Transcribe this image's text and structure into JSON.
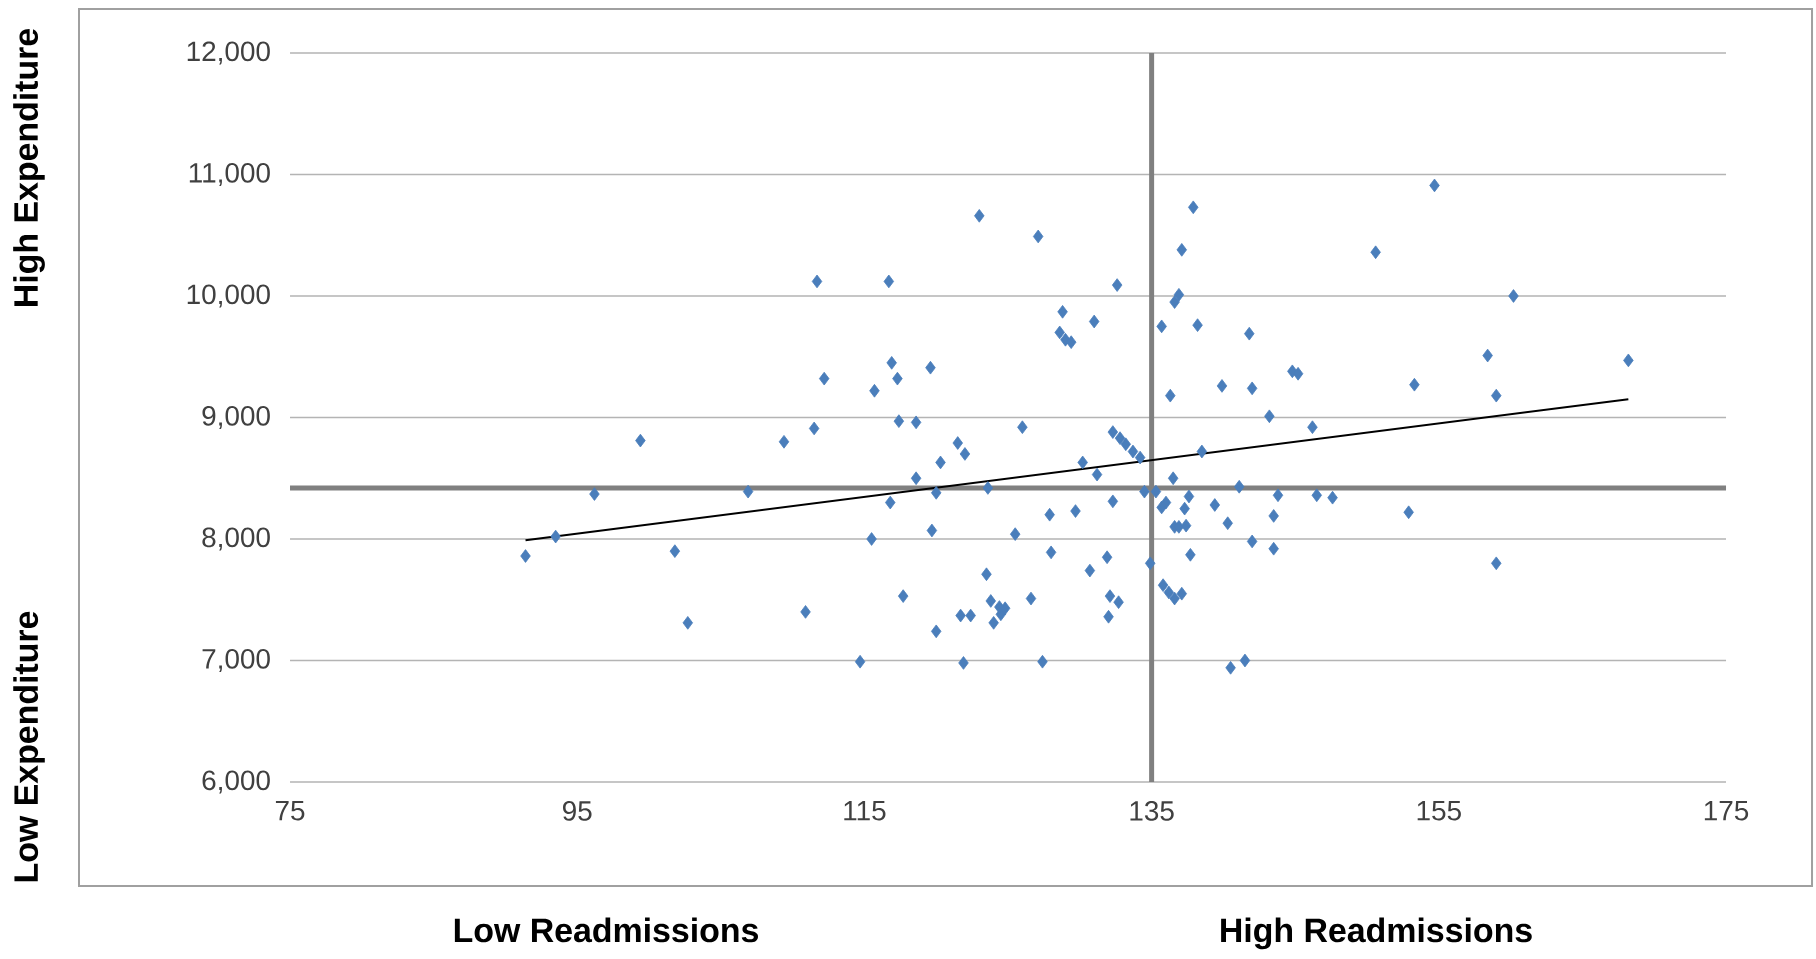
{
  "chart_data": {
    "type": "scatter",
    "xlim": [
      75,
      175
    ],
    "xticks": [
      75,
      95,
      115,
      135,
      155,
      175
    ],
    "ylim": [
      6000,
      12000
    ],
    "yticks": [
      {
        "value": 6000,
        "label": "6,000"
      },
      {
        "value": 7000,
        "label": "7,000"
      },
      {
        "value": 8000,
        "label": "8,000"
      },
      {
        "value": 9000,
        "label": "9,000"
      },
      {
        "value": 10000,
        "label": "10,000"
      },
      {
        "value": 11000,
        "label": "11,000"
      },
      {
        "value": 12000,
        "label": "12,000"
      }
    ],
    "grid": "y",
    "series": [
      {
        "marker": "diamond",
        "color": "#4a7ebb",
        "x": [
          91.4,
          93.5,
          96.2,
          99.4,
          101.8,
          102.7,
          106.9,
          109.4,
          111.5,
          111.7,
          112.2,
          110.9,
          114.7,
          115.5,
          115.7,
          116.7,
          116.9,
          117.3,
          116.8,
          117.4,
          117.7,
          118.6,
          118.6,
          119.6,
          119.7,
          120.0,
          120.0,
          120.3,
          121.5,
          121.7,
          122.0,
          121.9,
          122.4,
          123.0,
          123.5,
          123.6,
          123.8,
          124.0,
          124.5,
          124.4,
          124.8,
          125.5,
          126.0,
          126.6,
          127.1,
          127.4,
          127.9,
          128.0,
          128.6,
          128.8,
          129.0,
          129.4,
          129.7,
          130.2,
          130.7,
          131.0,
          131.2,
          131.9,
          132.0,
          132.1,
          132.3,
          132.3,
          132.6,
          132.7,
          132.8,
          133.2,
          133.7,
          134.2,
          134.5,
          134.9,
          135.3,
          135.7,
          135.7,
          135.8,
          136.0,
          136.2,
          136.3,
          136.5,
          136.6,
          136.6,
          136.6,
          136.9,
          136.9,
          137.1,
          137.1,
          137.3,
          137.4,
          137.6,
          137.7,
          137.9,
          138.2,
          138.5,
          139.4,
          139.9,
          140.3,
          140.5,
          141.1,
          141.5,
          141.8,
          142.0,
          142.0,
          143.2,
          143.5,
          143.5,
          143.8,
          144.8,
          145.2,
          146.2,
          146.5,
          147.6,
          150.6,
          152.9,
          153.3,
          154.7,
          158.4,
          159.0,
          159.0,
          160.2,
          168.2
        ],
        "values": [
          7860,
          8020,
          8370,
          8810,
          7900,
          7310,
          8390,
          8800,
          8910,
          10120,
          9320,
          7400,
          6990,
          8000,
          9220,
          10120,
          9450,
          9320,
          8300,
          8970,
          7530,
          8960,
          8500,
          9410,
          8070,
          7240,
          8380,
          8630,
          8790,
          7370,
          8700,
          6980,
          7370,
          10660,
          7710,
          8420,
          7490,
          7310,
          7380,
          7440,
          7430,
          8040,
          8920,
          7510,
          10490,
          6990,
          8200,
          7890,
          9700,
          9870,
          9640,
          9620,
          8230,
          8630,
          7740,
          9790,
          8530,
          7850,
          7360,
          7530,
          8310,
          8880,
          10090,
          7480,
          8830,
          8780,
          8720,
          8670,
          8390,
          7800,
          8390,
          9750,
          8260,
          7620,
          8300,
          7560,
          9180,
          8500,
          9950,
          8100,
          7510,
          10010,
          8100,
          10380,
          7550,
          8250,
          8110,
          8350,
          7870,
          10730,
          9760,
          8720,
          8280,
          9260,
          8130,
          6940,
          8430,
          7000,
          9690,
          7980,
          9240,
          9010,
          7920,
          8190,
          8360,
          9380,
          9360,
          8920,
          8360,
          8340,
          10360,
          8220,
          9270,
          10910,
          9510,
          9180,
          7800,
          10000,
          9470
        ]
      },
      {
        "type": "line",
        "marker": "none",
        "color": "#000000",
        "x": [
          91.4,
          168.2
        ],
        "values": [
          7990,
          9150
        ]
      }
    ],
    "ref_lines": [
      {
        "axis": "x",
        "value": 135,
        "color": "#808080"
      },
      {
        "axis": "y",
        "value": 8420,
        "color": "#808080"
      }
    ],
    "annotations": [
      "High Expenditure",
      "Low Expenditure",
      "Low Readmissions",
      "High Readmissions"
    ]
  }
}
